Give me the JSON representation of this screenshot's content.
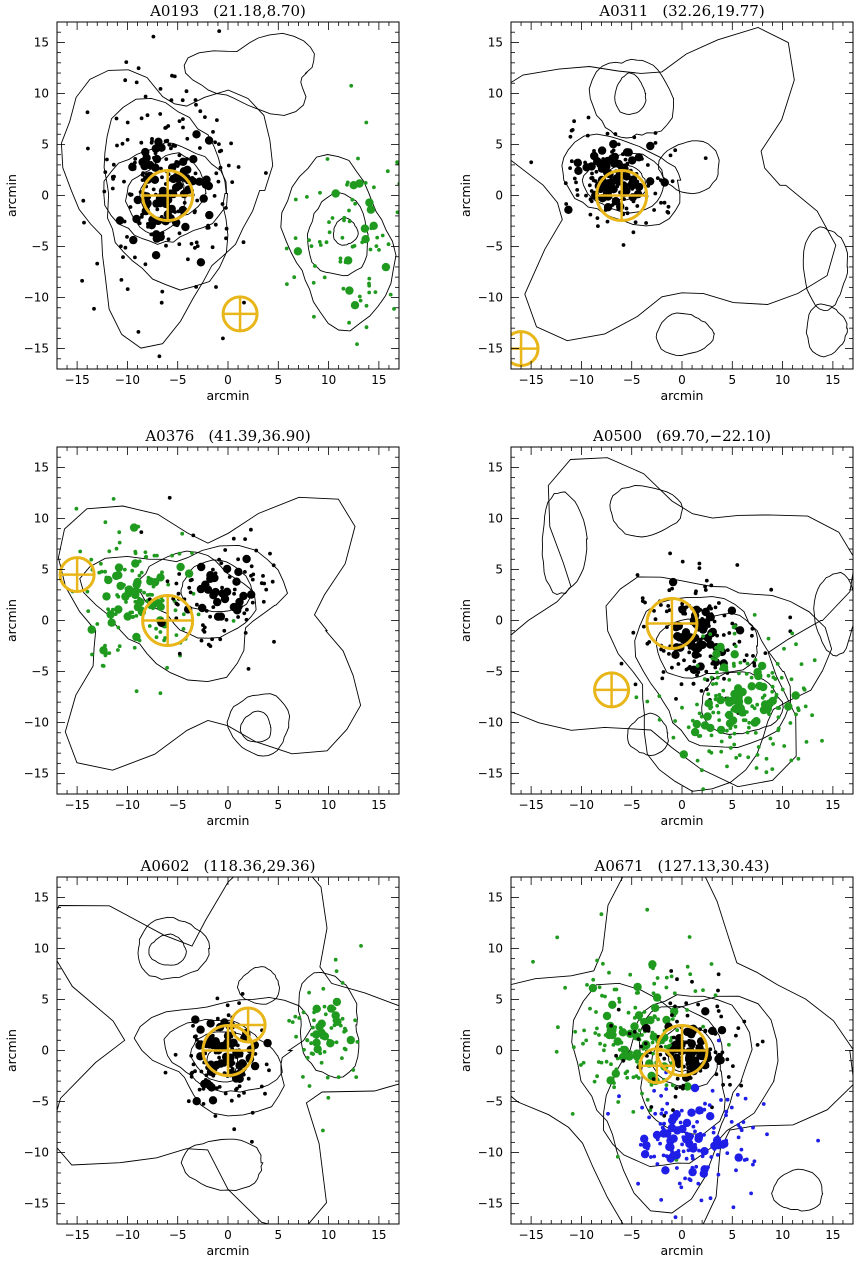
{
  "colors": {
    "black": "#000000",
    "green": "#1f9a1f",
    "blue": "#1e1ee6",
    "marker": "#e8b618"
  },
  "chart_data": [
    {
      "type": "scatter",
      "title": "A0193",
      "coords": "(21.18,8.70)",
      "xlabel": "arcmin",
      "ylabel": "arcmin",
      "xlim": [
        -17,
        17
      ],
      "ylim": [
        -17,
        17
      ],
      "xticks": [
        -15,
        -10,
        -5,
        0,
        5,
        10,
        15
      ],
      "yticks": [
        -15,
        -10,
        -5,
        0,
        5,
        10,
        15
      ],
      "grid": false,
      "groups": [
        {
          "color": "black",
          "center": [
            -6.2,
            0.2
          ],
          "sx": 3.6,
          "sy": 5.5,
          "n_small": 190,
          "n_large": 70,
          "large_spread": 0.55
        },
        {
          "color": "green",
          "center": [
            12,
            -4
          ],
          "sx": 3.2,
          "sy": 5.5,
          "n_small": 70,
          "n_large": 14,
          "large_spread": 0.7
        }
      ],
      "markers": [
        {
          "x": -6,
          "y": 0,
          "size": "large"
        },
        {
          "x": 1.2,
          "y": -11.6,
          "size": "small"
        }
      ],
      "contours": [
        {
          "cx": -6.5,
          "cy": 0.5,
          "rx": 9.5,
          "ry": 12,
          "lobes": 3
        },
        {
          "cx": -6.2,
          "cy": 0.2,
          "rx": 7,
          "ry": 8,
          "lobes": 2
        },
        {
          "cx": -6.2,
          "cy": 0.2,
          "rx": 5,
          "ry": 5.5,
          "lobes": 2
        },
        {
          "cx": -6.2,
          "cy": 0.2,
          "rx": 3.5,
          "ry": 3.8,
          "lobes": 2
        },
        {
          "cx": -6.2,
          "cy": 0.2,
          "rx": 2.2,
          "ry": 2.5,
          "lobes": 1
        },
        {
          "cx": 11,
          "cy": -4.5,
          "rx": 5.5,
          "ry": 7.5,
          "lobes": 2
        },
        {
          "cx": 11,
          "cy": -4.5,
          "rx": 3,
          "ry": 4,
          "lobes": 1
        },
        {
          "cx": 11.8,
          "cy": -3.5,
          "rx": 1.2,
          "ry": 1.3,
          "lobes": 1
        },
        {
          "cx": 3,
          "cy": 12,
          "rx": 6,
          "ry": 3.5,
          "lobes": 3
        }
      ]
    },
    {
      "type": "scatter",
      "title": "A0311",
      "coords": "(32.26,19.77)",
      "xlabel": "arcmin",
      "ylabel": "arcmin",
      "xlim": [
        -17,
        17
      ],
      "ylim": [
        -17,
        17
      ],
      "xticks": [
        -15,
        -10,
        -5,
        0,
        5,
        10,
        15
      ],
      "yticks": [
        -15,
        -10,
        -5,
        0,
        5,
        10,
        15
      ],
      "grid": false,
      "groups": [
        {
          "color": "black",
          "center": [
            -6.5,
            1.5
          ],
          "sx": 2.8,
          "sy": 2.5,
          "n_small": 120,
          "n_large": 60,
          "large_spread": 0.7
        }
      ],
      "markers": [
        {
          "x": -6,
          "y": 0,
          "size": "large"
        },
        {
          "x": -16,
          "y": -15,
          "size": "small"
        }
      ],
      "contours": [
        {
          "cx": -2,
          "cy": 1,
          "rx": 15,
          "ry": 14,
          "lobes": 4
        },
        {
          "cx": -6,
          "cy": 1.5,
          "rx": 6,
          "ry": 4,
          "lobes": 2
        },
        {
          "cx": -6,
          "cy": 1.5,
          "rx": 4,
          "ry": 2.8,
          "lobes": 1
        },
        {
          "cx": -5.8,
          "cy": 1,
          "rx": 2.2,
          "ry": 1.7,
          "lobes": 1
        },
        {
          "cx": -5,
          "cy": 9.5,
          "rx": 3.5,
          "ry": 4.5,
          "lobes": 2
        },
        {
          "cx": -5,
          "cy": 10,
          "rx": 1.5,
          "ry": 2,
          "lobes": 1
        },
        {
          "cx": 0.5,
          "cy": 3,
          "rx": 3,
          "ry": 2.5,
          "lobes": 1
        },
        {
          "cx": 14.5,
          "cy": -7,
          "rx": 2.2,
          "ry": 4,
          "lobes": 1
        },
        {
          "cx": 14.5,
          "cy": -13,
          "rx": 2,
          "ry": 2.5,
          "lobes": 1
        },
        {
          "cx": 0.5,
          "cy": -13.5,
          "rx": 2.8,
          "ry": 2,
          "lobes": 1
        }
      ]
    },
    {
      "type": "scatter",
      "title": "A0376",
      "coords": "(41.39,36.90)",
      "xlabel": "arcmin",
      "ylabel": "arcmin",
      "xlim": [
        -17,
        17
      ],
      "ylim": [
        -17,
        17
      ],
      "xticks": [
        -15,
        -10,
        -5,
        0,
        5,
        10,
        15
      ],
      "yticks": [
        -15,
        -10,
        -5,
        0,
        5,
        10,
        15
      ],
      "grid": false,
      "groups": [
        {
          "color": "green",
          "center": [
            -9,
            2
          ],
          "sx": 3.2,
          "sy": 4.2,
          "n_small": 110,
          "n_large": 35,
          "large_spread": 0.6
        },
        {
          "color": "black",
          "center": [
            -1,
            3
          ],
          "sx": 3.2,
          "sy": 2.8,
          "n_small": 80,
          "n_large": 28,
          "large_spread": 0.6
        }
      ],
      "markers": [
        {
          "x": -6,
          "y": 0,
          "size": "large"
        },
        {
          "x": -15,
          "y": 4.5,
          "size": "medium"
        }
      ],
      "contours": [
        {
          "cx": -2,
          "cy": -1,
          "rx": 15,
          "ry": 12.5,
          "lobes": 4
        },
        {
          "cx": -4,
          "cy": 1.5,
          "rx": 9,
          "ry": 6,
          "lobes": 3
        },
        {
          "cx": -3,
          "cy": 2.5,
          "rx": 5.5,
          "ry": 3.8,
          "lobes": 2
        },
        {
          "cx": -1.5,
          "cy": 3,
          "rx": 3.5,
          "ry": 2.5,
          "lobes": 1
        },
        {
          "cx": 3,
          "cy": -10.5,
          "rx": 3,
          "ry": 3,
          "lobes": 1
        },
        {
          "cx": 3,
          "cy": -10.5,
          "rx": 1.5,
          "ry": 1.5,
          "lobes": 1
        }
      ]
    },
    {
      "type": "scatter",
      "title": "A0500",
      "coords": "(69.70,−22.10)",
      "xlabel": "arcmin",
      "ylabel": "arcmin",
      "xlim": [
        -17,
        17
      ],
      "ylim": [
        -17,
        17
      ],
      "xticks": [
        -15,
        -10,
        -5,
        0,
        5,
        10,
        15
      ],
      "yticks": [
        -15,
        -10,
        -5,
        0,
        5,
        10,
        15
      ],
      "grid": false,
      "groups": [
        {
          "color": "black",
          "center": [
            1.5,
            -1.5
          ],
          "sx": 3.5,
          "sy": 3.2,
          "n_small": 140,
          "n_large": 45,
          "large_spread": 0.5
        },
        {
          "color": "green",
          "center": [
            6,
            -8.5
          ],
          "sx": 3.6,
          "sy": 3.2,
          "n_small": 150,
          "n_large": 45,
          "large_spread": 0.6
        }
      ],
      "markers": [
        {
          "x": -1,
          "y": -0.3,
          "size": "large"
        },
        {
          "x": -7,
          "y": -6.8,
          "size": "medium"
        }
      ],
      "contours": [
        {
          "cx": -1,
          "cy": 0,
          "rx": 15.5,
          "ry": 14,
          "lobes": 4
        },
        {
          "cx": 3,
          "cy": -5,
          "rx": 9.5,
          "ry": 10,
          "lobes": 3
        },
        {
          "cx": 3,
          "cy": -5,
          "rx": 7,
          "ry": 7.5,
          "lobes": 2
        },
        {
          "cx": 2.5,
          "cy": -2.5,
          "rx": 4.5,
          "ry": 3.5,
          "lobes": 2
        },
        {
          "cx": 6,
          "cy": -8.5,
          "rx": 4,
          "ry": 3,
          "lobes": 1
        },
        {
          "cx": -4,
          "cy": 10.5,
          "rx": 3.5,
          "ry": 2.5,
          "lobes": 1
        },
        {
          "cx": -12,
          "cy": 8,
          "rx": 2.2,
          "ry": 5,
          "lobes": 1
        },
        {
          "cx": 15,
          "cy": 0.5,
          "rx": 2,
          "ry": 4,
          "lobes": 1
        },
        {
          "cx": -3.5,
          "cy": -11,
          "rx": 2,
          "ry": 2,
          "lobes": 1
        }
      ]
    },
    {
      "type": "scatter",
      "title": "A0602",
      "coords": "(118.36,29.36)",
      "xlabel": "arcmin",
      "ylabel": "arcmin",
      "xlim": [
        -17,
        17
      ],
      "ylim": [
        -17,
        17
      ],
      "xticks": [
        -15,
        -10,
        -5,
        0,
        5,
        10,
        15
      ],
      "yticks": [
        -15,
        -10,
        -5,
        0,
        5,
        10,
        15
      ],
      "grid": false,
      "groups": [
        {
          "color": "black",
          "center": [
            -0.5,
            -0.8
          ],
          "sx": 2.2,
          "sy": 2.4,
          "n_small": 110,
          "n_large": 60,
          "large_spread": 0.7
        },
        {
          "color": "green",
          "center": [
            10,
            2
          ],
          "sx": 1.8,
          "sy": 2.8,
          "n_small": 60,
          "n_large": 14,
          "large_spread": 0.5
        }
      ],
      "markers": [
        {
          "x": 0,
          "y": 0,
          "size": "large"
        },
        {
          "x": 2,
          "y": 2.5,
          "size": "medium"
        }
      ],
      "contours": [
        {
          "cx": 0,
          "cy": 1,
          "rx": 16,
          "ry": 15,
          "lobes": 5
        },
        {
          "cx": 0,
          "cy": 0,
          "rx": 7.5,
          "ry": 5.5,
          "lobes": 3
        },
        {
          "cx": -0.5,
          "cy": -0.5,
          "rx": 5,
          "ry": 3.8,
          "lobes": 2
        },
        {
          "cx": -0.5,
          "cy": -0.8,
          "rx": 3,
          "ry": 2.5,
          "lobes": 1
        },
        {
          "cx": -0.5,
          "cy": -0.8,
          "rx": 1.5,
          "ry": 1.4,
          "lobes": 1
        },
        {
          "cx": -6,
          "cy": 10,
          "rx": 3.5,
          "ry": 3,
          "lobes": 1
        },
        {
          "cx": -6,
          "cy": 10,
          "rx": 1.8,
          "ry": 1.5,
          "lobes": 1
        },
        {
          "cx": 10,
          "cy": 2.5,
          "rx": 3.5,
          "ry": 4.5,
          "lobes": 2
        },
        {
          "cx": 0,
          "cy": -11,
          "rx": 4,
          "ry": 2.5,
          "lobes": 1
        },
        {
          "cx": 3,
          "cy": 6.5,
          "rx": 2,
          "ry": 1.8,
          "lobes": 1
        }
      ]
    },
    {
      "type": "scatter",
      "title": "A0671",
      "coords": "(127.13,30.43)",
      "xlabel": "arcmin",
      "ylabel": "arcmin",
      "xlim": [
        -17,
        17
      ],
      "ylim": [
        -17,
        17
      ],
      "xticks": [
        -15,
        -10,
        -5,
        0,
        5,
        10,
        15
      ],
      "yticks": [
        -15,
        -10,
        -5,
        0,
        5,
        10,
        15
      ],
      "grid": false,
      "groups": [
        {
          "color": "green",
          "center": [
            -5,
            2
          ],
          "sx": 3.8,
          "sy": 4.2,
          "n_small": 130,
          "n_large": 40,
          "large_spread": 0.6
        },
        {
          "color": "black",
          "center": [
            0.5,
            0
          ],
          "sx": 3.2,
          "sy": 2.8,
          "n_small": 100,
          "n_large": 45,
          "large_spread": 0.5
        },
        {
          "color": "blue",
          "center": [
            1,
            -9
          ],
          "sx": 4,
          "sy": 3,
          "n_small": 120,
          "n_large": 40,
          "large_spread": 0.6
        }
      ],
      "markers": [
        {
          "x": 0,
          "y": 0,
          "size": "large"
        },
        {
          "x": -2.5,
          "y": -1.5,
          "size": "medium"
        }
      ],
      "contours": [
        {
          "cx": -2,
          "cy": 0,
          "rx": 15.5,
          "ry": 15,
          "lobes": 4
        },
        {
          "cx": -1,
          "cy": -3,
          "rx": 9.5,
          "ry": 10,
          "lobes": 3
        },
        {
          "cx": -0.5,
          "cy": -3,
          "rx": 7,
          "ry": 8,
          "lobes": 2
        },
        {
          "cx": 0,
          "cy": -2,
          "rx": 5,
          "ry": 5.5,
          "lobes": 2
        },
        {
          "cx": 0,
          "cy": -0.5,
          "rx": 3.2,
          "ry": 3,
          "lobes": 1
        },
        {
          "cx": 0,
          "cy": -0.3,
          "rx": 1.6,
          "ry": 1.5,
          "lobes": 1
        },
        {
          "cx": 11.5,
          "cy": -14,
          "rx": 2.5,
          "ry": 2,
          "lobes": 1
        }
      ]
    }
  ]
}
